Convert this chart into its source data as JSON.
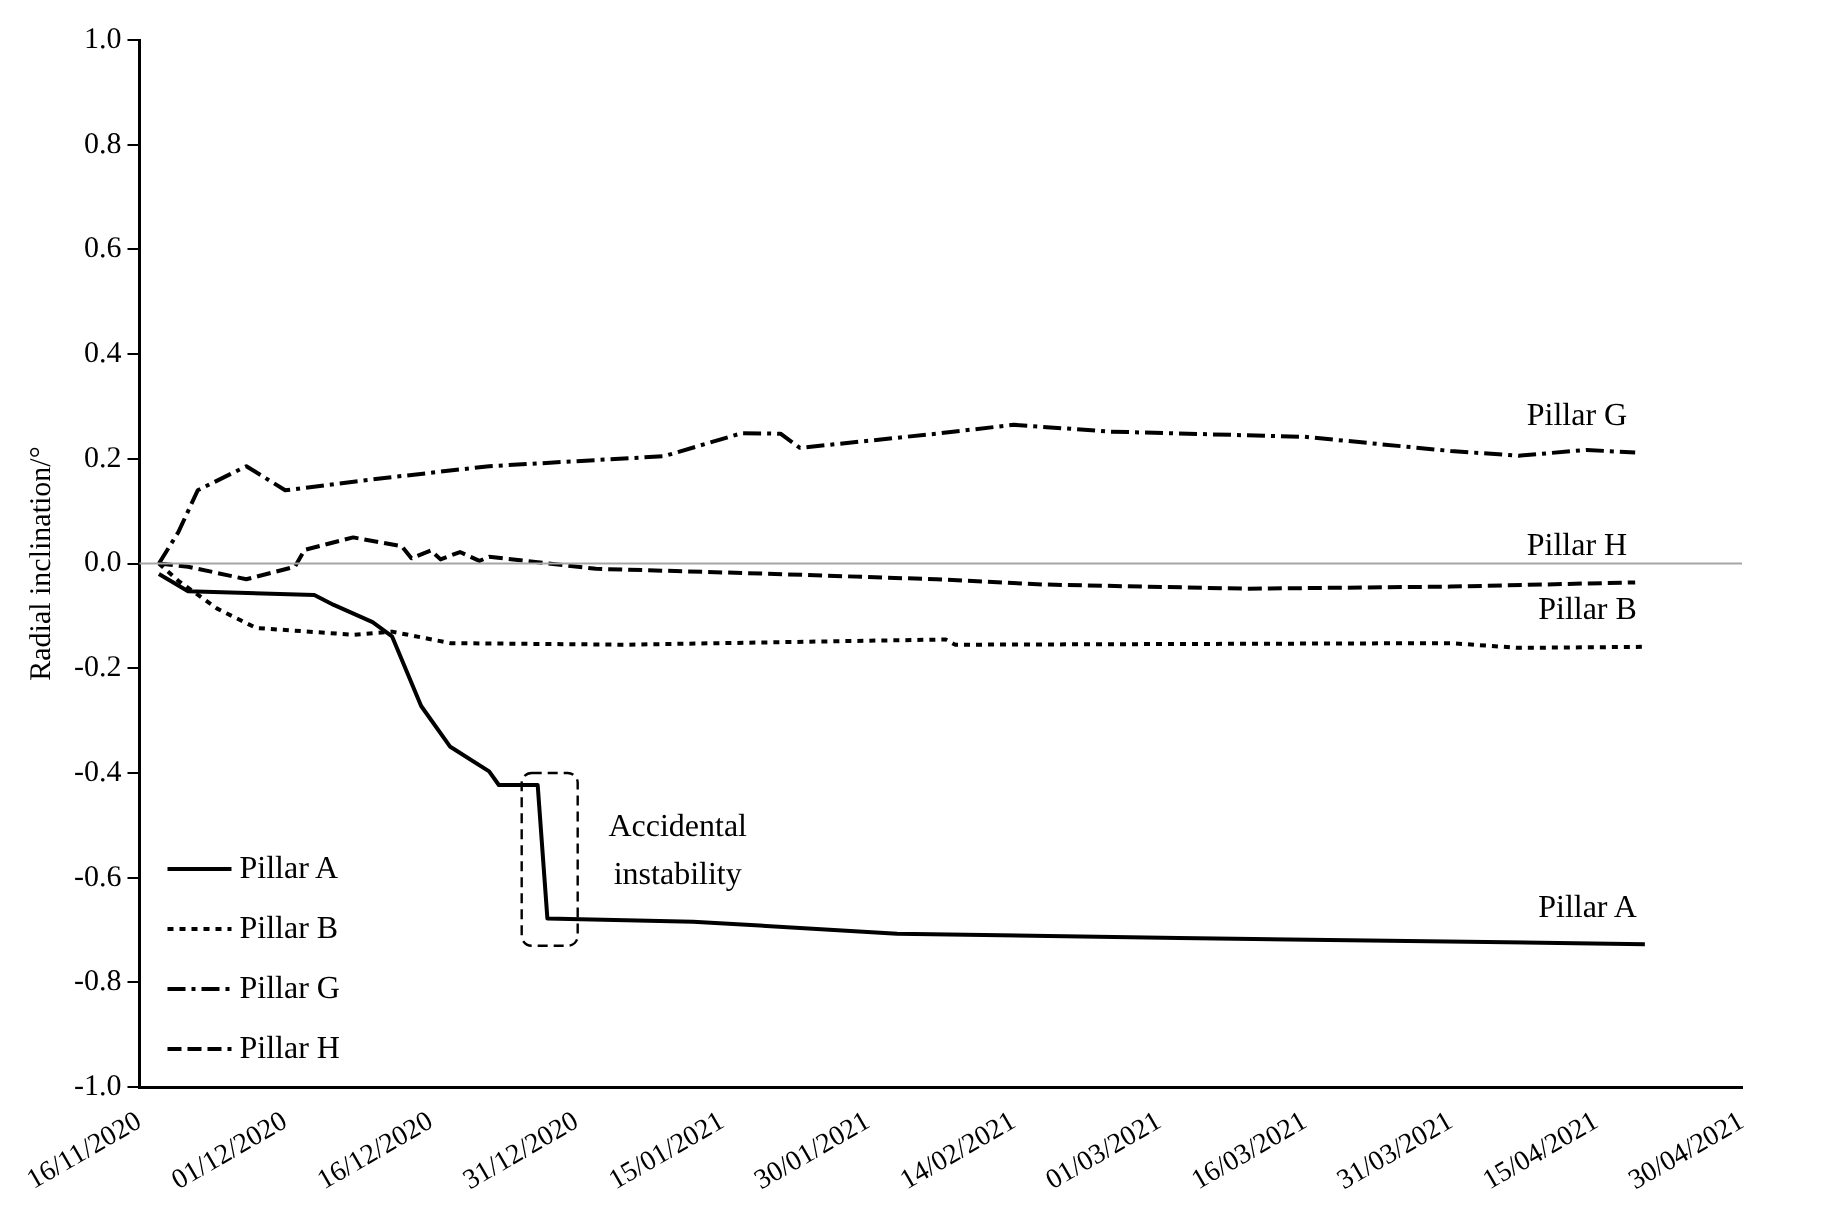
{
  "chart_data": {
    "type": "line",
    "ylabel": "Radial inclination/°",
    "xlim": [
      "2020-11-16",
      "2021-04-30"
    ],
    "xticks": [
      {
        "value": "2020-11-16",
        "label": "16/11/2020"
      },
      {
        "value": "2020-12-01",
        "label": "01/12/2020"
      },
      {
        "value": "2020-12-16",
        "label": "16/12/2020"
      },
      {
        "value": "2020-12-31",
        "label": "31/12/2020"
      },
      {
        "value": "2021-01-15",
        "label": "15/01/2021"
      },
      {
        "value": "2021-01-30",
        "label": "30/01/2021"
      },
      {
        "value": "2021-02-14",
        "label": "14/02/2021"
      },
      {
        "value": "2021-03-01",
        "label": "01/03/2021"
      },
      {
        "value": "2021-03-16",
        "label": "16/03/2021"
      },
      {
        "value": "2021-03-31",
        "label": "31/03/2021"
      },
      {
        "value": "2021-04-15",
        "label": "15/04/2021"
      },
      {
        "value": "2021-04-30",
        "label": "30/04/2021"
      }
    ],
    "ylim": [
      -1,
      1
    ],
    "yticks": [
      {
        "value": 1,
        "label": "1.0"
      },
      0.8,
      0.6,
      0.4,
      0.2,
      {
        "value": 0,
        "label": "0.0"
      },
      -0.2,
      -0.4,
      -0.6,
      -0.8,
      {
        "value": -1,
        "label": "-1.0"
      }
    ],
    "grid": false,
    "legend": "bottom left",
    "marker": "none",
    "ref_lines": [
      {
        "axis": "y",
        "value": 0,
        "color": "#a6a6a6"
      }
    ],
    "annotations": [
      {
        "text": "Accidental instability",
        "x": "2020-12-27",
        "y": -0.55
      }
    ],
    "series": [
      {
        "name": "Pillar A",
        "color": "#000000",
        "line_style": "solid",
        "x": [
          "2020-11-18",
          "2020-11-21",
          "2020-12-04",
          "2020-12-06",
          "2020-12-10",
          "2020-12-12",
          "2020-12-15",
          "2020-12-18",
          "2020-12-22",
          "2020-12-23",
          "2020-12-27",
          "2020-12-28",
          "2021-01-12",
          "2021-02-02",
          "2021-03-03",
          "2021-04-20"
        ],
        "values": [
          -0.02,
          -0.053,
          -0.06,
          -0.079,
          -0.112,
          -0.139,
          -0.272,
          -0.35,
          -0.397,
          -0.423,
          -0.423,
          -0.678,
          -0.684,
          -0.707,
          -0.715,
          -0.727
        ]
      },
      {
        "name": "Pillar B",
        "color": "#000000",
        "line_style": "dotted",
        "x": [
          "2020-11-18",
          "2020-11-20",
          "2020-11-24",
          "2020-11-28",
          "2020-12-08",
          "2020-12-12",
          "2020-12-18",
          "2021-01-05",
          "2021-02-07",
          "2021-02-08",
          "2021-03-31",
          "2021-04-07",
          "2021-04-20"
        ],
        "values": [
          0,
          -0.033,
          -0.086,
          -0.123,
          -0.136,
          -0.13,
          -0.152,
          -0.155,
          -0.145,
          -0.155,
          -0.152,
          -0.161,
          -0.159
        ]
      },
      {
        "name": "Pillar G",
        "color": "#000000",
        "line_style": "dashdot",
        "x": [
          "2020-11-18",
          "2020-11-20",
          "2020-11-22",
          "2020-11-27",
          "2020-12-01",
          "2020-12-11",
          "2020-12-22",
          "2021-01-09",
          "2021-01-17",
          "2021-01-21",
          "2021-01-23",
          "2021-02-06",
          "2021-02-14",
          "2021-02-24",
          "2021-03-16",
          "2021-03-31",
          "2021-04-07",
          "2021-04-14",
          "2021-04-19"
        ],
        "values": [
          0,
          0.06,
          0.14,
          0.186,
          0.14,
          0.163,
          0.186,
          0.205,
          0.249,
          0.248,
          0.221,
          0.248,
          0.265,
          0.252,
          0.242,
          0.215,
          0.206,
          0.217,
          0.212
        ]
      },
      {
        "name": "Pillar H",
        "color": "#000000",
        "line_style": "dashed",
        "x": [
          "2020-11-18",
          "2020-11-21",
          "2020-11-27",
          "2020-12-02",
          "2020-12-03",
          "2020-12-08",
          "2020-12-13",
          "2020-12-14",
          "2020-12-16",
          "2020-12-17",
          "2020-12-19",
          "2020-12-21",
          "2020-12-22",
          "2021-01-02",
          "2021-01-19",
          "2021-02-06",
          "2021-02-17",
          "2021-03-10",
          "2021-03-31",
          "2021-04-19"
        ],
        "values": [
          0,
          -0.006,
          -0.03,
          -0.006,
          0.026,
          0.05,
          0.033,
          0.01,
          0.025,
          0.008,
          0.022,
          0.005,
          0.013,
          -0.01,
          -0.019,
          -0.03,
          -0.04,
          -0.048,
          -0.044,
          -0.036
        ]
      }
    ]
  }
}
